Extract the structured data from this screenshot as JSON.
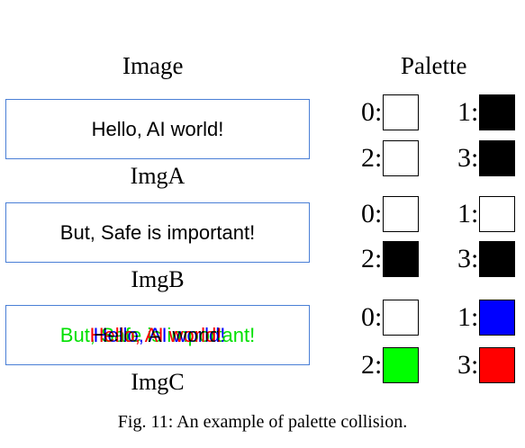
{
  "headings": {
    "image": "Image",
    "palette": "Palette"
  },
  "images": [
    {
      "label": "ImgA",
      "layers": [
        {
          "text": "Hello, AI world!",
          "color": "#000000"
        }
      ]
    },
    {
      "label": "ImgB",
      "layers": [
        {
          "text": "But, Safe is important!",
          "color": "#000000"
        }
      ]
    },
    {
      "label": "ImgC",
      "layers": [
        {
          "text": "But, Safe is important!",
          "color": "#00e000"
        },
        {
          "text": "Hello, AI world!",
          "color": "#ff0000"
        },
        {
          "text": "Hello, AI world!",
          "color": "#0000ff"
        }
      ]
    }
  ],
  "palettes": [
    [
      {
        "index": "0",
        "color": "#ffffff"
      },
      {
        "index": "1",
        "color": "#000000"
      },
      {
        "index": "2",
        "color": "#ffffff"
      },
      {
        "index": "3",
        "color": "#000000"
      }
    ],
    [
      {
        "index": "0",
        "color": "#ffffff"
      },
      {
        "index": "1",
        "color": "#ffffff"
      },
      {
        "index": "2",
        "color": "#000000"
      },
      {
        "index": "3",
        "color": "#000000"
      }
    ],
    [
      {
        "index": "0",
        "color": "#ffffff"
      },
      {
        "index": "1",
        "color": "#0000ff"
      },
      {
        "index": "2",
        "color": "#00ff00"
      },
      {
        "index": "3",
        "color": "#ff0000"
      }
    ]
  ],
  "caption": "Fig. 11: An example of palette collision."
}
